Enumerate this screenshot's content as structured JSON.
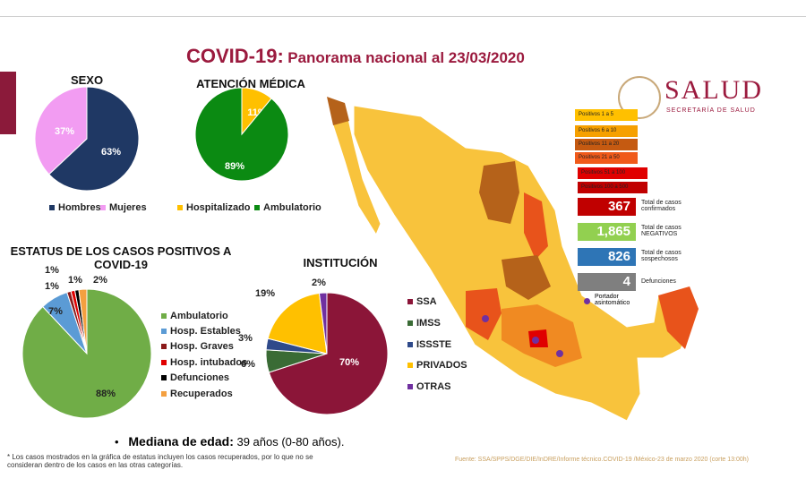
{
  "header": {
    "title": "COVID-19:",
    "subtitle": "Panorama nacional al 23/03/2020"
  },
  "logo": {
    "name": "SALUD",
    "sub": "SECRETARÍA DE SALUD"
  },
  "chart_data": [
    {
      "type": "pie",
      "title": "SEXO",
      "categories": [
        "Hombres",
        "Mujeres"
      ],
      "values": [
        63,
        37
      ],
      "value_labels": [
        "63%",
        "37%"
      ],
      "colors": [
        "#1f3864",
        "#f29cf2"
      ]
    },
    {
      "type": "pie",
      "title": "ATENCIÓN MÉDICA",
      "categories": [
        "Hospitalizado",
        "Ambulatorio"
      ],
      "values": [
        11,
        89
      ],
      "value_labels": [
        "11%",
        "89%"
      ],
      "colors": [
        "#ffc000",
        "#0b8a12"
      ]
    },
    {
      "type": "pie",
      "title": "ESTATUS DE LOS CASOS POSITIVOS A COVID-19",
      "categories": [
        "Ambulatorio",
        "Hosp. Estables",
        "Hosp. Graves",
        "Hosp. intubados",
        "Defunciones",
        "Recuperados"
      ],
      "values": [
        88,
        7,
        1,
        1,
        1,
        2
      ],
      "value_labels": [
        "88%",
        "7%",
        "1%",
        "1%",
        "1%",
        "2%"
      ],
      "colors": [
        "#70ad47",
        "#5b9bd5",
        "#8b1a1a",
        "#e00000",
        "#000000",
        "#f4a040"
      ]
    },
    {
      "type": "pie",
      "title": "INSTITUCIÓN",
      "categories": [
        "SSA",
        "IMSS",
        "ISSSTE",
        "PRIVADOS",
        "OTRAS"
      ],
      "values": [
        70,
        6,
        3,
        19,
        2
      ],
      "value_labels": [
        "70%",
        "6%",
        "3%",
        "19%",
        "2%"
      ],
      "colors": [
        "#8b1538",
        "#3a6b35",
        "#2f4a8a",
        "#ffc000",
        "#7030a0"
      ]
    }
  ],
  "map_legend": [
    "Positivos 1 a 5",
    "Positivos 6 a 10",
    "Positivos 11 a 20",
    "Positivos 21 a 50",
    "Positivos 51 a 100",
    "Positivos 100 a 500"
  ],
  "stats": [
    {
      "value": "367",
      "label": "Total de casos confirmados"
    },
    {
      "value": "1,865",
      "label": "Total de casos NEGATIVOS"
    },
    {
      "value": "826",
      "label": "Total de casos sospechosos"
    },
    {
      "value": "4",
      "label": "Defunciones"
    }
  ],
  "carrier": "Portador asintomático",
  "median": {
    "label": "Mediana de edad:",
    "value": "39 años (0-80 años)."
  },
  "footnote": "* Los casos mostrados en la gráfica de estatus incluyen los casos recuperados, por lo que no se consideran dentro de los casos en las otras categorías.",
  "source": "Fuente: SSA/SPPS/DGE/DIE/InDRE/Informe técnico.COVID-19 /México-23 de marzo 2020 (corte 13:00h)"
}
